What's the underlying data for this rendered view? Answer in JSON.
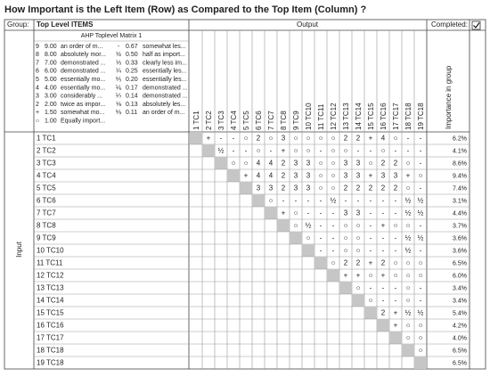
{
  "title": "How Important is the Left Item (Row) as Compared to the Top Item (Column) ?",
  "header": {
    "group_label": "Group:",
    "group": "Top Level ITEMS",
    "output": "Output",
    "completed": "Completed:"
  },
  "scale": {
    "title": "AHP Toplevel Matrix 1",
    "left": [
      {
        "symbol": "9",
        "value": "9.00",
        "text": "an order of m...",
        "color": "#c0602a"
      },
      {
        "symbol": "8",
        "value": "8.00",
        "text": "absolutely mor...",
        "color": "#c0602a"
      },
      {
        "symbol": "7",
        "value": "7.00",
        "text": "demonstrated ...",
        "color": "#c0602a"
      },
      {
        "symbol": "6",
        "value": "6.00",
        "text": "demonstrated ...",
        "color": "#c0602a"
      },
      {
        "symbol": "5",
        "value": "5.00",
        "text": "essentially mo...",
        "color": "#c0602a"
      },
      {
        "symbol": "4",
        "value": "4.00",
        "text": "essentially mo...",
        "color": "#c0602a"
      },
      {
        "symbol": "3",
        "value": "3.00",
        "text": "considerably ...",
        "color": "#c0602a"
      },
      {
        "symbol": "2",
        "value": "2.00",
        "text": "twice as impor...",
        "color": "#c0602a"
      },
      {
        "symbol": "+",
        "value": "1.50",
        "text": "somewhat mo...",
        "color": "#d4782e"
      },
      {
        "symbol": "○",
        "value": "1.00",
        "text": "Equally import...",
        "color": "#777777"
      }
    ],
    "right": [
      {
        "symbol": "-",
        "value": "0.67",
        "text": "somewhat les...",
        "color": "#5f7f5f"
      },
      {
        "symbol": "½",
        "value": "0.50",
        "text": "half as import...",
        "color": "#2f8f2f"
      },
      {
        "symbol": "⅓",
        "value": "0.33",
        "text": "clearly less im...",
        "color": "#2f8f2f"
      },
      {
        "symbol": "¼",
        "value": "0.25",
        "text": "essentially les...",
        "color": "#2f8f2f"
      },
      {
        "symbol": "⅕",
        "value": "0.20",
        "text": "essentially les...",
        "color": "#2f8f2f"
      },
      {
        "symbol": "⅙",
        "value": "0.17",
        "text": "demonstrated ...",
        "color": "#2f8f2f"
      },
      {
        "symbol": "⅐",
        "value": "0.14",
        "text": "demonstrated ...",
        "color": "#2f8f2f"
      },
      {
        "symbol": "⅛",
        "value": "0.13",
        "text": "absolutely les...",
        "color": "#2f8f2f"
      },
      {
        "symbol": "⅑",
        "value": "0.11",
        "text": "an order of m...",
        "color": "#2f8f2f"
      }
    ]
  },
  "importance_label": "Importance in group",
  "input_label": "Input",
  "columns": [
    "1 TC1",
    "2 TC2",
    "3 TC3",
    "4 TC4",
    "5 TC5",
    "6 TC6",
    "7 TC7",
    "8 TC8",
    "9 TC9",
    "10 TC10",
    "11 TC11",
    "12 TC12",
    "13 TC13",
    "14 TC14",
    "15 TC15",
    "16 TC16",
    "17 TC17",
    "18 TC18",
    "19 TC18"
  ],
  "rows": [
    {
      "label": "1 TC1",
      "cells": [
        "+",
        "-",
        "-",
        "○",
        "2",
        "○",
        "3",
        "○",
        "○",
        "○",
        "○",
        "2",
        "2",
        "+",
        "4",
        "○",
        "-",
        "-"
      ],
      "importance": "6.2%"
    },
    {
      "label": "2 TC2",
      "cells": [
        "½",
        "-",
        "-",
        "○",
        "-",
        "+",
        "○",
        "○",
        "-",
        "○",
        "○",
        "-",
        "-",
        "○",
        "-",
        "-",
        "-"
      ],
      "importance": "4.1%"
    },
    {
      "label": "3 TC3",
      "cells": [
        "○",
        "○",
        "4",
        "4",
        "2",
        "3",
        "3",
        "○",
        "○",
        "3",
        "3",
        "○",
        "2",
        "2",
        "○",
        "-"
      ],
      "importance": "8.6%"
    },
    {
      "label": "4 TC4",
      "cells": [
        "+",
        "4",
        "4",
        "2",
        "3",
        "3",
        "○",
        "○",
        "3",
        "3",
        "+",
        "3",
        "3",
        "+",
        "○"
      ],
      "importance": "9.4%"
    },
    {
      "label": "5 TC5",
      "cells": [
        "3",
        "3",
        "2",
        "3",
        "3",
        "○",
        "○",
        "2",
        "2",
        "2",
        "2",
        "2",
        "○",
        "-"
      ],
      "importance": "7.4%"
    },
    {
      "label": "6 TC6",
      "cells": [
        "○",
        "-",
        "-",
        "-",
        "-",
        "½",
        "-",
        "-",
        "-",
        "-",
        "-",
        "½",
        "½"
      ],
      "importance": "3.1%"
    },
    {
      "label": "7 TC7",
      "cells": [
        "+",
        "○",
        "-",
        "-",
        "-",
        "3",
        "3",
        "-",
        "-",
        "-",
        "½",
        "½"
      ],
      "importance": "4.4%"
    },
    {
      "label": "8 TC8",
      "cells": [
        "○",
        "½",
        "-",
        "-",
        "○",
        "○",
        "-",
        "+",
        "○",
        "○",
        "-"
      ],
      "importance": "3.7%"
    },
    {
      "label": "9 TC9",
      "cells": [
        "○",
        "-",
        "-",
        "○",
        "○",
        "-",
        "-",
        "-",
        "½",
        "½"
      ],
      "importance": "3.6%"
    },
    {
      "label": "10 TC10",
      "cells": [
        "-",
        "-",
        "○",
        "○",
        "-",
        "-",
        "-",
        "½",
        "-"
      ],
      "importance": "3.6%"
    },
    {
      "label": "11 TC11",
      "cells": [
        "○",
        "2",
        "2",
        "+",
        "2",
        "○",
        "○",
        "○"
      ],
      "importance": "6.5%"
    },
    {
      "label": "12 TC12",
      "cells": [
        "+",
        "+",
        "○",
        "+",
        "○",
        "○",
        "○"
      ],
      "importance": "6.0%"
    },
    {
      "label": "13 TC13",
      "cells": [
        "○",
        "-",
        "-",
        "-",
        "○",
        "-"
      ],
      "importance": "3.4%"
    },
    {
      "label": "14 TC14",
      "cells": [
        "○",
        "-",
        "-",
        "○",
        "-"
      ],
      "importance": "3.4%"
    },
    {
      "label": "15 TC15",
      "cells": [
        "2",
        "+",
        "½",
        "½"
      ],
      "importance": "5.4%"
    },
    {
      "label": "16 TC16",
      "cells": [
        "+",
        "○",
        "○"
      ],
      "importance": "4.2%"
    },
    {
      "label": "17 TC17",
      "cells": [
        "○",
        "○"
      ],
      "importance": "4.0%"
    },
    {
      "label": "18 TC18",
      "cells": [
        "○"
      ],
      "importance": "6.5%"
    },
    {
      "label": "19 TC18",
      "cells": [],
      "importance": "6.5%"
    }
  ]
}
